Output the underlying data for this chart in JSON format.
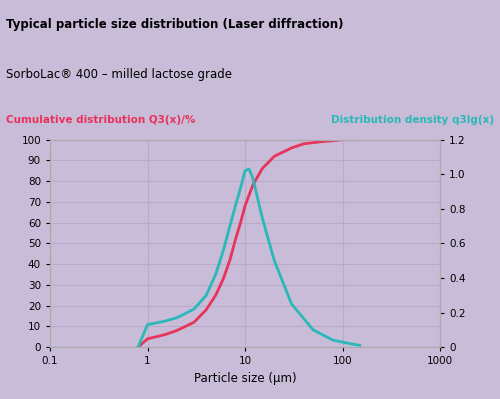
{
  "title1": "Typical particle size distribution (Laser diffraction)",
  "title2": "SorboLac® 400 – milled lactose grade",
  "left_label": "Cumulative distribution Q3(x)/%",
  "right_label": "Distribution density q3lg(x)",
  "xlabel": "Particle size (µm)",
  "left_color": "#e8335a",
  "right_color": "#2ab8b8",
  "bg_color": "#c8bcd8",
  "title1_bg": "#c0b4d0",
  "title2_bg": "#ccc0dc",
  "grid_color": "#b8aac8",
  "cumulative_x": [
    0.8,
    1.0,
    1.5,
    2.0,
    3.0,
    4.0,
    5.0,
    6.0,
    7.0,
    8.0,
    9.0,
    10.0,
    12.0,
    15.0,
    20.0,
    30.0,
    40.0,
    60.0,
    80.0,
    100.0,
    130.0,
    150.0
  ],
  "cumulative_y": [
    0,
    4,
    6,
    8,
    12,
    18,
    25,
    33,
    42,
    52,
    60,
    68,
    78,
    86,
    92,
    96,
    98,
    99,
    99.5,
    100,
    100,
    100
  ],
  "density_x": [
    0.8,
    1.0,
    1.5,
    2.0,
    3.0,
    4.0,
    5.0,
    6.0,
    7.0,
    8.0,
    9.0,
    10.0,
    11.0,
    12.0,
    15.0,
    20.0,
    30.0,
    50.0,
    80.0,
    120.0,
    150.0
  ],
  "density_y": [
    0,
    0.13,
    0.15,
    0.17,
    0.22,
    0.3,
    0.42,
    0.56,
    0.7,
    0.82,
    0.92,
    1.02,
    1.03,
    0.98,
    0.75,
    0.5,
    0.25,
    0.1,
    0.04,
    0.02,
    0.01
  ],
  "xlim": [
    0.1,
    1000
  ],
  "ylim_left": [
    0,
    100
  ],
  "ylim_right": [
    0,
    1.2
  ],
  "yticks_left": [
    0,
    10,
    20,
    30,
    40,
    50,
    60,
    70,
    80,
    90,
    100
  ],
  "yticks_right": [
    0,
    0.2,
    0.4,
    0.6,
    0.8,
    1.0,
    1.2
  ],
  "xticks": [
    0.1,
    1,
    10,
    100,
    1000
  ],
  "figsize": [
    5.0,
    3.99
  ],
  "dpi": 100
}
